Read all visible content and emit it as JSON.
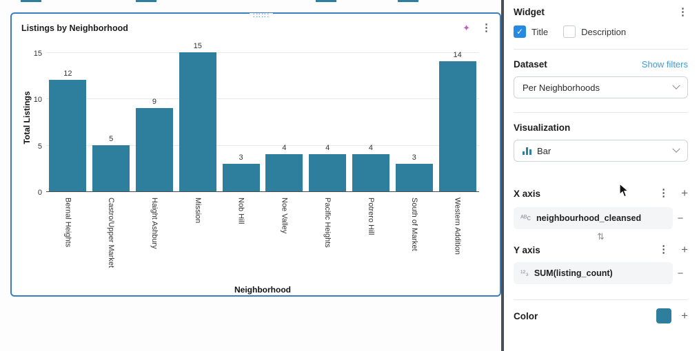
{
  "widget": {
    "title": "Listings by Neighborhood"
  },
  "chart_data": {
    "type": "bar",
    "title": "Listings by Neighborhood",
    "categories": [
      "Bernal Heights",
      "Castro/Upper Market",
      "Haight Ashbury",
      "Mission",
      "Nob Hill",
      "Noe Valley",
      "Pacific Heights",
      "Potrero Hill",
      "South of Market",
      "Western Addition"
    ],
    "values": [
      12,
      5,
      9,
      15,
      3,
      4,
      4,
      4,
      3,
      14
    ],
    "xlabel": "Neighborhood",
    "ylabel": "Total Listings",
    "ylim": [
      0,
      15
    ],
    "yticks": [
      0,
      5,
      10,
      15
    ],
    "bar_color": "#2d7f9d",
    "grid": true,
    "legend": "none"
  },
  "panel": {
    "header": {
      "title": "Widget"
    },
    "checkboxes": {
      "title": {
        "label": "Title",
        "checked": true
      },
      "description": {
        "label": "Description",
        "checked": false
      }
    },
    "dataset": {
      "label": "Dataset",
      "link": "Show filters",
      "selected": "Per Neighborhoods"
    },
    "visualization": {
      "label": "Visualization",
      "selected": "Bar"
    },
    "x_axis": {
      "label": "X axis",
      "field": "neighbourhood_cleansed",
      "type": "text"
    },
    "y_axis": {
      "label": "Y axis",
      "field": "SUM(listing_count)",
      "type": "number"
    },
    "color": {
      "label": "Color",
      "swatch": "#2d7f9d"
    }
  },
  "colors": {
    "accent": "#2d7f9d",
    "selection_border": "#3a7cc2",
    "checkbox": "#2889e0",
    "link": "#3d9bd4"
  }
}
